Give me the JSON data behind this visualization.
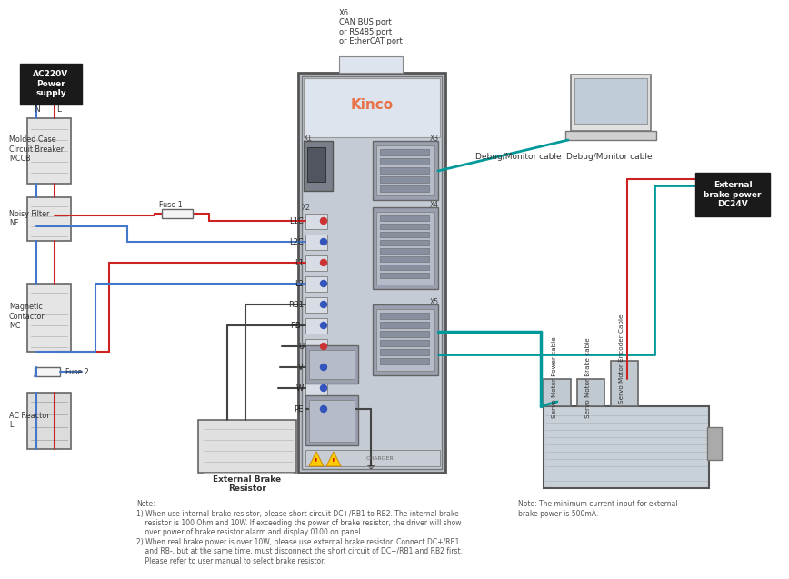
{
  "bg_color": "#ffffff",
  "kinco_color": "#e8734a",
  "wire_red": "#cc2222",
  "wire_blue": "#4477cc",
  "wire_teal": "#009999",
  "wire_black": "#444444",
  "ac220v_label": "AC220V\nPower\nsupply",
  "mccb_label": "Molded Case\nCircuit Breaker\nMCCB",
  "nf_label": "Noisy Filter\nNF",
  "mc_label": "Magnetic\nContactor\nMC",
  "acr_label": "AC Reactor\nL",
  "fuse1_label": "Fuse 1",
  "fuse2_label": "Fuse 2",
  "ext_brake_res_label": "External Brake\nResistor",
  "servo_power_label": "Servo Motor Power cable",
  "servo_brake_label": "Servo Motor Brake cable",
  "servo_encoder_label": "Servo Motor Encoder Cable",
  "debug_label": "Debug/Monitor cable",
  "ext_brake_label": "External\nbrake power\nDC24V",
  "x6_label": "X6\nCAN BUS port\nor RS485 port\nor EtherCAT port",
  "note_text": "Note:\n1) When use internal brake resistor, please short circuit DC+/RB1 to RB2. The internal brake\n    resistor is 100 Ohm and 10W. If exceeding the power of brake resistor, the driver will show\n    over power of brake resistor alarm and display 0100 on panel.\n2) When real brake power is over 10W, please use external brake resistor. Connect DC+/RB1\n    and RB-, but at the same time, must disconnect the short circuit of DC+/RB1 and RB2 first.\n    Please refer to user manual to select brake resistor.",
  "note_right": "Note: The minimum current input for external\nbrake power is 500mA.",
  "terminal_labels": [
    "L1C",
    "L2C",
    "L1",
    "L2",
    "RB1",
    "RB-",
    "U",
    "V",
    "W",
    "PE"
  ]
}
